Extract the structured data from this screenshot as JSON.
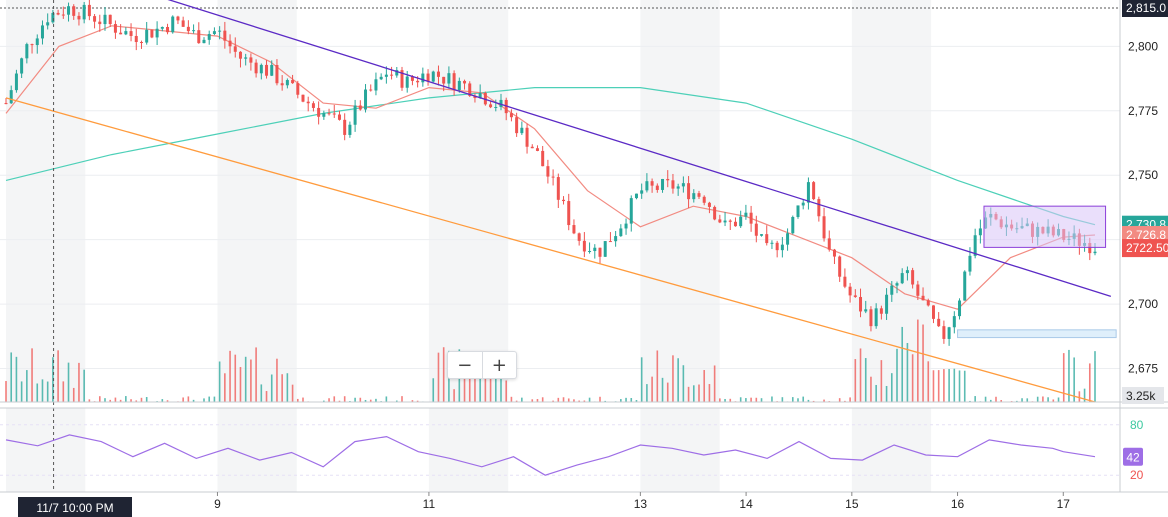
{
  "chart_data": {
    "type": "candlestick",
    "instrument_panel": {
      "y_ticks": [
        2675,
        2700,
        2725,
        2750,
        2775,
        2800
      ],
      "ylim": [
        2662,
        2818
      ],
      "x_ticks": [
        {
          "label": "9",
          "t": 9.0
        },
        {
          "label": "11",
          "t": 11.0
        },
        {
          "label": "13",
          "t": 13.0
        },
        {
          "label": "14",
          "t": 14.0
        },
        {
          "label": "15",
          "t": 15.0
        },
        {
          "label": "16",
          "t": 16.0
        },
        {
          "label": "17",
          "t": 17.0
        }
      ],
      "xlim": [
        7.0,
        17.0
      ],
      "price_labels": {
        "high_line": "2,815.0",
        "last_price": "2722.50",
        "ma_teal": "2,730.8",
        "ma_red": "2,726.8"
      },
      "volume_label": "3.25k",
      "price_path": [
        [
          7.0,
          2778
        ],
        [
          7.2,
          2800
        ],
        [
          7.4,
          2812
        ],
        [
          7.6,
          2815
        ],
        [
          7.8,
          2812
        ],
        [
          8.0,
          2808
        ],
        [
          8.2,
          2804
        ],
        [
          8.4,
          2806
        ],
        [
          8.6,
          2810
        ],
        [
          8.8,
          2804
        ],
        [
          9.0,
          2806
        ],
        [
          9.2,
          2796
        ],
        [
          9.5,
          2790
        ],
        [
          9.8,
          2780
        ],
        [
          10.2,
          2768
        ],
        [
          10.4,
          2780
        ],
        [
          10.6,
          2790
        ],
        [
          10.8,
          2786
        ],
        [
          11.0,
          2790
        ],
        [
          11.4,
          2784
        ],
        [
          11.7,
          2776
        ],
        [
          12.0,
          2760
        ],
        [
          12.2,
          2744
        ],
        [
          12.4,
          2726
        ],
        [
          12.6,
          2720
        ],
        [
          12.8,
          2730
        ],
        [
          13.0,
          2744
        ],
        [
          13.3,
          2746
        ],
        [
          13.6,
          2742
        ],
        [
          13.8,
          2730
        ],
        [
          14.0,
          2734
        ],
        [
          14.2,
          2720
        ],
        [
          14.4,
          2728
        ],
        [
          14.6,
          2748
        ],
        [
          14.8,
          2718
        ],
        [
          15.0,
          2702
        ],
        [
          15.2,
          2694
        ],
        [
          15.5,
          2712
        ],
        [
          15.7,
          2698
        ],
        [
          15.85,
          2686
        ],
        [
          16.0,
          2700
        ],
        [
          16.15,
          2726
        ],
        [
          16.3,
          2734
        ],
        [
          16.5,
          2730
        ],
        [
          16.8,
          2728
        ],
        [
          17.0,
          2726
        ],
        [
          17.2,
          2724
        ],
        [
          17.3,
          2722.5
        ]
      ],
      "ma_fast": [
        [
          7.0,
          2774
        ],
        [
          7.5,
          2800
        ],
        [
          8.0,
          2808
        ],
        [
          8.5,
          2806
        ],
        [
          9.0,
          2804
        ],
        [
          9.5,
          2794
        ],
        [
          10.0,
          2778
        ],
        [
          10.5,
          2776
        ],
        [
          11.0,
          2784
        ],
        [
          11.5,
          2782
        ],
        [
          12.0,
          2768
        ],
        [
          12.5,
          2744
        ],
        [
          13.0,
          2730
        ],
        [
          13.5,
          2738
        ],
        [
          14.0,
          2734
        ],
        [
          14.5,
          2726
        ],
        [
          15.0,
          2718
        ],
        [
          15.5,
          2704
        ],
        [
          16.0,
          2698
        ],
        [
          16.5,
          2718
        ],
        [
          17.0,
          2726
        ],
        [
          17.3,
          2726.8
        ]
      ],
      "ma_slow": [
        [
          7.0,
          2748
        ],
        [
          8.0,
          2758
        ],
        [
          9.0,
          2766
        ],
        [
          10.0,
          2774
        ],
        [
          11.0,
          2780
        ],
        [
          12.0,
          2784
        ],
        [
          13.0,
          2784
        ],
        [
          14.0,
          2778
        ],
        [
          15.0,
          2764
        ],
        [
          16.0,
          2748
        ],
        [
          17.0,
          2734
        ],
        [
          17.3,
          2730.8
        ]
      ],
      "trendline_upper": [
        [
          7.0,
          2838
        ],
        [
          17.45,
          2703
        ]
      ],
      "trendline_lower": [
        [
          7.0,
          2780
        ],
        [
          17.3,
          2662
        ]
      ],
      "box": {
        "t1": 16.25,
        "t2": 17.4,
        "p1": 2722,
        "p2": 2738
      },
      "support_zone": {
        "t1": 16.0,
        "t2": 17.5,
        "p1": 2687,
        "p2": 2690
      }
    },
    "rsi_panel": {
      "y_ticks": [
        20,
        80
      ],
      "ylim": [
        0,
        100
      ],
      "value_label": "42",
      "path": [
        [
          7.0,
          62
        ],
        [
          7.3,
          55
        ],
        [
          7.6,
          68
        ],
        [
          7.9,
          60
        ],
        [
          8.2,
          42
        ],
        [
          8.5,
          58
        ],
        [
          8.8,
          40
        ],
        [
          9.1,
          52
        ],
        [
          9.4,
          38
        ],
        [
          9.7,
          47
        ],
        [
          10.0,
          30
        ],
        [
          10.3,
          60
        ],
        [
          10.6,
          66
        ],
        [
          10.9,
          48
        ],
        [
          11.2,
          40
        ],
        [
          11.5,
          30
        ],
        [
          11.8,
          42
        ],
        [
          12.1,
          20
        ],
        [
          12.4,
          32
        ],
        [
          12.7,
          42
        ],
        [
          13.0,
          56
        ],
        [
          13.3,
          52
        ],
        [
          13.6,
          44
        ],
        [
          13.9,
          50
        ],
        [
          14.2,
          40
        ],
        [
          14.5,
          60
        ],
        [
          14.8,
          40
        ],
        [
          15.1,
          38
        ],
        [
          15.4,
          56
        ],
        [
          15.7,
          44
        ],
        [
          16.0,
          42
        ],
        [
          16.3,
          62
        ],
        [
          16.6,
          56
        ],
        [
          16.9,
          52
        ],
        [
          17.0,
          48
        ],
        [
          17.3,
          42
        ]
      ]
    },
    "crosshair_label": "11/7 10:00 PM",
    "colors": {
      "up": "#26a69a",
      "down": "#ef5350",
      "ma_fast": "#f28b82",
      "ma_slow": "#4dd0b8",
      "trend_upper": "#5b2ac5",
      "trend_lower": "#ff9b3d",
      "rsi": "#9e6ee6",
      "box_fill": "#d8c4f7",
      "box_stroke": "#8c3fd9",
      "last_price": "#ef5350"
    }
  },
  "controls": {
    "zoom_out": "−",
    "zoom_in": "+"
  }
}
